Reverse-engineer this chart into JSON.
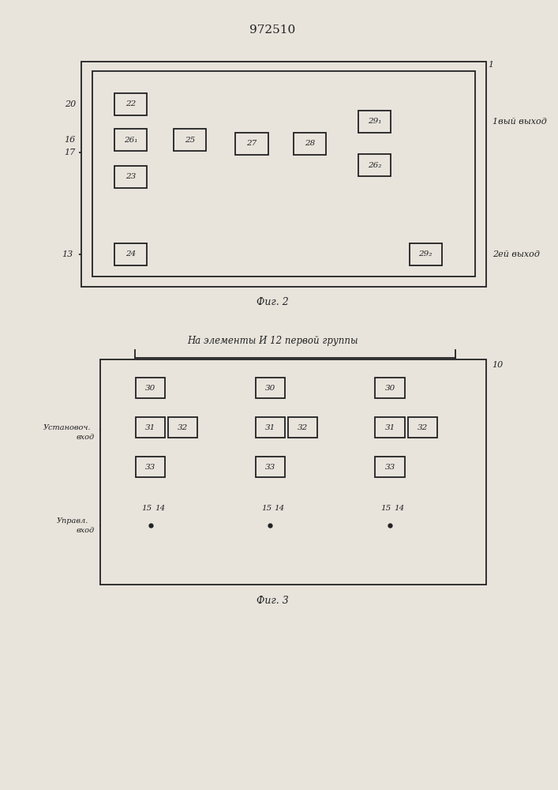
{
  "title": "972510",
  "fig2_caption": "Фиг. 2",
  "fig3_caption": "Фиг. 3",
  "bg_color": "#e8e4dc",
  "line_color": "#222222",
  "box_color": "#e8e4dc"
}
